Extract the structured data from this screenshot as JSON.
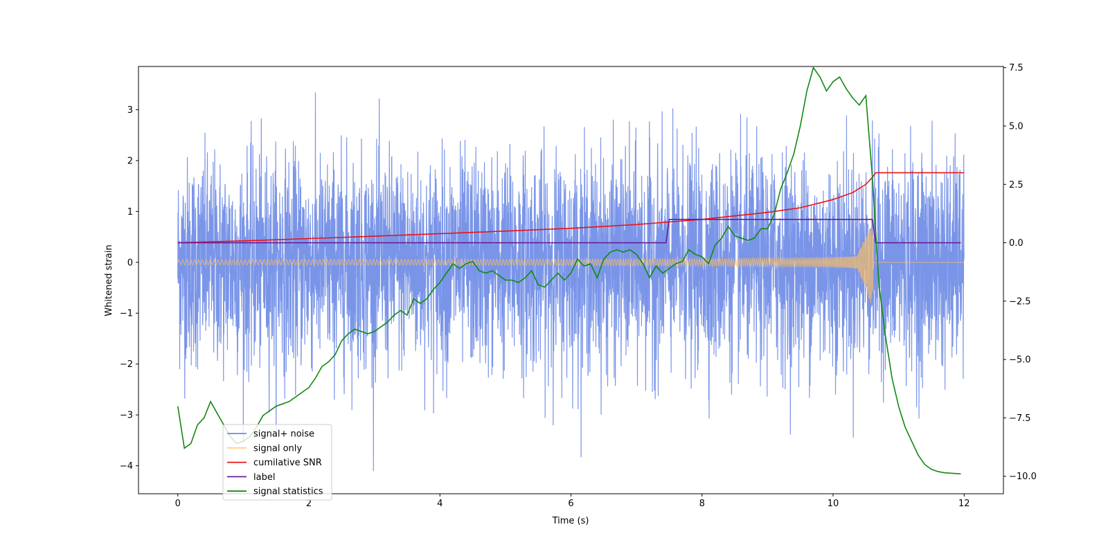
{
  "chart_data": {
    "type": "line",
    "title": "",
    "xlabel": "Time (s)",
    "ylabel": "Whitened strain",
    "y2label": "",
    "xlim": [
      -0.6,
      12.6
    ],
    "ylim": [
      -4.55,
      3.85
    ],
    "y2lim": [
      -10.75,
      7.55
    ],
    "x_ticks": [
      0,
      2,
      4,
      6,
      8,
      10,
      12
    ],
    "x_tick_labels": [
      "0",
      "2",
      "4",
      "6",
      "8",
      "10",
      "12"
    ],
    "y_ticks": [
      -4,
      -3,
      -2,
      -1,
      0,
      1,
      2,
      3
    ],
    "y_tick_labels": [
      "−4",
      "−3",
      "−2",
      "−1",
      "0",
      "1",
      "2",
      "3"
    ],
    "y2_ticks": [
      -10,
      -7.5,
      -5,
      -2.5,
      0,
      2.5,
      5,
      7.5
    ],
    "y2_tick_labels": [
      "−10.0",
      "−7.5",
      "−5.0",
      "−2.5",
      "0.0",
      "2.5",
      "5.0",
      "7.5"
    ],
    "grid": false,
    "legend_position": "lower-left",
    "series": [
      {
        "name": "signal+ noise",
        "color": "#6b8ae6",
        "axis": "left",
        "kind": "noisy",
        "x_range": [
          0,
          12
        ],
        "envelope_typical": 1.7,
        "envelope_peak": 3.45,
        "min_observed": -4.15
      },
      {
        "name": "signal only",
        "color": "#ffbf60",
        "axis": "left",
        "kind": "chirp",
        "x_range": [
          0,
          12
        ],
        "merger_time": 10.62,
        "start_amplitude": 0.05,
        "peak_amplitude": 1.3,
        "after_merger_value": 0.0
      },
      {
        "name": "cumilative SNR",
        "color": "#ee1111",
        "axis": "right",
        "x": [
          0,
          1,
          2,
          3,
          4,
          5,
          6,
          7,
          8,
          9,
          9.5,
          10,
          10.3,
          10.5,
          10.6,
          10.65,
          12
        ],
        "values": [
          0.0,
          0.08,
          0.18,
          0.28,
          0.39,
          0.5,
          0.62,
          0.78,
          1.0,
          1.3,
          1.5,
          1.85,
          2.15,
          2.5,
          2.8,
          3.0,
          3.0
        ]
      },
      {
        "name": "label",
        "color": "#6a1b9a",
        "axis": "right",
        "x": [
          0,
          7.45,
          7.5,
          10.6,
          10.65,
          11.95
        ],
        "values": [
          0,
          0,
          1,
          1,
          0,
          0
        ]
      },
      {
        "name": "signal statistics",
        "color": "#118811",
        "axis": "right",
        "x": [
          0,
          0.1,
          0.2,
          0.3,
          0.4,
          0.5,
          0.6,
          0.7,
          0.8,
          0.9,
          1.0,
          1.1,
          1.2,
          1.3,
          1.4,
          1.5,
          1.6,
          1.7,
          1.8,
          1.9,
          2.0,
          2.1,
          2.2,
          2.3,
          2.4,
          2.5,
          2.6,
          2.7,
          2.8,
          2.9,
          3.0,
          3.1,
          3.2,
          3.3,
          3.4,
          3.5,
          3.6,
          3.7,
          3.8,
          3.9,
          4.0,
          4.1,
          4.2,
          4.3,
          4.4,
          4.5,
          4.6,
          4.7,
          4.8,
          4.9,
          5.0,
          5.1,
          5.2,
          5.3,
          5.4,
          5.5,
          5.6,
          5.7,
          5.8,
          5.9,
          6.0,
          6.1,
          6.2,
          6.3,
          6.4,
          6.5,
          6.6,
          6.7,
          6.8,
          6.9,
          7.0,
          7.1,
          7.2,
          7.3,
          7.4,
          7.5,
          7.6,
          7.7,
          7.8,
          7.9,
          8.0,
          8.1,
          8.2,
          8.3,
          8.4,
          8.5,
          8.6,
          8.7,
          8.8,
          8.9,
          9.0,
          9.1,
          9.2,
          9.3,
          9.4,
          9.5,
          9.6,
          9.7,
          9.8,
          9.9,
          10.0,
          10.1,
          10.2,
          10.3,
          10.4,
          10.5,
          10.6,
          10.7,
          10.8,
          10.9,
          11.0,
          11.1,
          11.2,
          11.3,
          11.4,
          11.5,
          11.6,
          11.7,
          11.8,
          11.95
        ],
        "values": [
          -7.0,
          -8.8,
          -8.6,
          -7.8,
          -7.5,
          -6.8,
          -7.3,
          -7.8,
          -8.3,
          -8.6,
          -8.5,
          -8.3,
          -7.9,
          -7.4,
          -7.2,
          -7.0,
          -6.9,
          -6.8,
          -6.6,
          -6.4,
          -6.2,
          -5.8,
          -5.3,
          -5.1,
          -4.8,
          -4.2,
          -3.9,
          -3.7,
          -3.8,
          -3.9,
          -3.8,
          -3.6,
          -3.4,
          -3.1,
          -2.9,
          -3.1,
          -2.4,
          -2.6,
          -2.4,
          -2.0,
          -1.7,
          -1.3,
          -0.9,
          -1.1,
          -0.9,
          -0.8,
          -1.2,
          -1.3,
          -1.2,
          -1.4,
          -1.6,
          -1.6,
          -1.7,
          -1.5,
          -1.2,
          -1.8,
          -1.9,
          -1.6,
          -1.3,
          -1.6,
          -1.3,
          -0.7,
          -1.0,
          -0.9,
          -1.5,
          -0.7,
          -0.4,
          -0.3,
          -0.4,
          -0.3,
          -0.5,
          -0.9,
          -1.5,
          -1.0,
          -1.3,
          -1.1,
          -0.9,
          -0.8,
          -0.3,
          -0.5,
          -0.6,
          -0.9,
          -0.1,
          0.2,
          0.7,
          0.3,
          0.2,
          0.1,
          0.2,
          0.6,
          0.6,
          1.2,
          2.3,
          3.0,
          3.8,
          5.0,
          6.5,
          7.5,
          7.1,
          6.5,
          6.9,
          7.1,
          6.6,
          6.2,
          5.9,
          6.3,
          2.8,
          -1.8,
          -4.0,
          -5.8,
          -7.0,
          -7.9,
          -8.5,
          -9.1,
          -9.5,
          -9.7,
          -9.8,
          -9.85,
          -9.87,
          -9.9
        ]
      }
    ]
  }
}
